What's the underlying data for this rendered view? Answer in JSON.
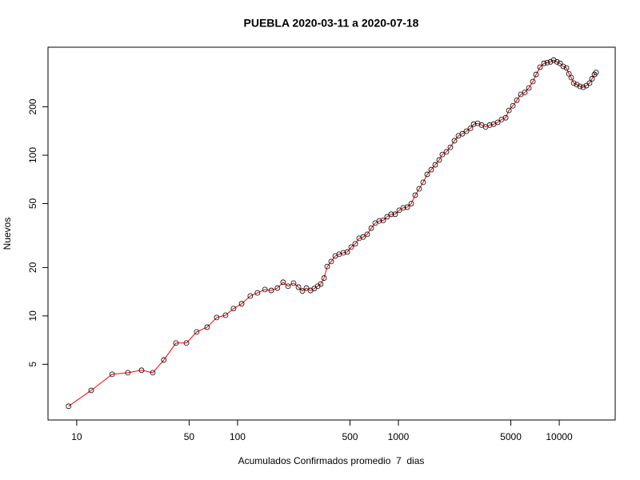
{
  "chart_data": {
    "type": "line",
    "title": "PUEBLA 2020-03-11 a 2020-07-18",
    "x_label": "Acumulados Confirmados promedio  7  dias",
    "y_label": "Nuevos",
    "x": [
      8.9,
      12.3,
      16.6,
      20.8,
      25.3,
      29.7,
      34.8,
      41.4,
      48.1,
      55.7,
      64.7,
      74.2,
      84.2,
      94.4,
      106,
      120,
      133,
      148,
      162,
      177,
      192,
      206,
      223,
      239,
      253,
      268,
      284,
      300,
      315,
      329,
      345,
      361,
      382,
      405,
      428,
      454,
      481,
      509,
      539,
      570,
      604,
      640,
      678,
      718,
      760,
      804,
      851,
      902,
      955,
      1012,
      1071,
      1135,
      1202,
      1272,
      1346,
      1426,
      1510,
      1599,
      1693,
      1793,
      1877,
      1989,
      2105,
      2229,
      2361,
      2500,
      2648,
      2804,
      2937,
      3110,
      3293,
      3487,
      3693,
      3911,
      4142,
      4386,
      4644,
      4864,
      5148,
      5451,
      5771,
      6111,
      6471,
      6852,
      7175,
      7598,
      8044,
      8423,
      8820,
      9235,
      9670,
      10115,
      10590,
      11090,
      11480,
      11880,
      12300,
      12860,
      13460,
      14090,
      14750,
      15440,
      15990,
      16560,
      16950
    ],
    "values": [
      2.74,
      3.44,
      4.33,
      4.43,
      4.59,
      4.43,
      5.32,
      6.78,
      6.78,
      7.95,
      8.51,
      9.77,
      10.1,
      11.1,
      11.9,
      13.3,
      13.9,
      14.6,
      14.4,
      14.9,
      16.2,
      15.3,
      16.0,
      15.1,
      14.3,
      14.9,
      14.4,
      14.8,
      15.3,
      15.8,
      17.2,
      20.3,
      21.8,
      23.6,
      24.2,
      24.7,
      25.0,
      26.8,
      28.1,
      30.4,
      31.0,
      32.2,
      35.2,
      37.8,
      39.0,
      39.3,
      41.4,
      42.9,
      42.9,
      45.4,
      47,
      47.5,
      50,
      56.4,
      61.8,
      67.8,
      76.0,
      81.3,
      87.1,
      93.4,
      101,
      105,
      112,
      123,
      132,
      136,
      141,
      147,
      156,
      158,
      154,
      150,
      154,
      156,
      160,
      167,
      171,
      190,
      203,
      220,
      239,
      246,
      262,
      287,
      318,
      353,
      373,
      377,
      381,
      391,
      381,
      373,
      357,
      349,
      321,
      304,
      281,
      275,
      268,
      265,
      271,
      281,
      299,
      318,
      327
    ],
    "color": "#ff0000",
    "marker_color": "#000000",
    "xlim": [
      6.63,
      22280
    ],
    "ylim": [
      2.25,
      470
    ],
    "xticks": [
      10,
      50,
      100,
      500,
      1000,
      5000,
      10000
    ],
    "yticks": [
      5,
      10,
      20,
      50,
      100,
      200
    ],
    "xscale": "log",
    "yscale": "log"
  }
}
